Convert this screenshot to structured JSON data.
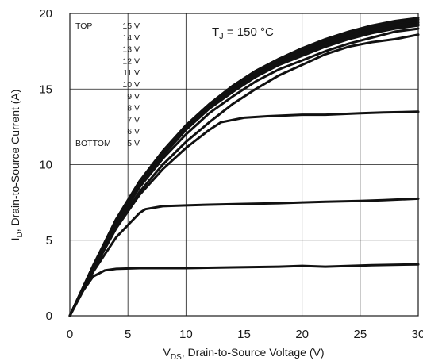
{
  "chart_data": {
    "type": "line",
    "xlabel_main": "V",
    "xlabel_sub": "DS",
    "xlabel_rest": ", Drain-to-Source Voltage (V)",
    "ylabel_main": "I",
    "ylabel_sub": "D",
    "ylabel_rest": ", Drain-to-Source Current (A)",
    "xlim": [
      0,
      30
    ],
    "ylim": [
      0,
      20
    ],
    "xticks": [
      0,
      5,
      10,
      15,
      20,
      25,
      30
    ],
    "yticks": [
      0,
      5,
      10,
      15,
      20
    ],
    "grid": true,
    "annotation": {
      "main": "T",
      "sub": "J",
      "rest": " = 150 °C"
    },
    "legend": {
      "top_label": "TOP",
      "bottom_label": "BOTTOM",
      "entries": [
        "15 V",
        "14 V",
        "13 V",
        "12 V",
        "11 V",
        "10 V",
        "9 V",
        "8 V",
        "7 V",
        "6 V",
        "5 V"
      ]
    },
    "series": [
      {
        "x": [
          0,
          2,
          4,
          6,
          8,
          10,
          12,
          14,
          16,
          18,
          20,
          22,
          24,
          26,
          28,
          30
        ],
        "values": [
          0,
          3.3,
          6.4,
          8.9,
          10.9,
          12.6,
          14.0,
          15.2,
          16.2,
          17.0,
          17.7,
          18.3,
          18.8,
          19.2,
          19.5,
          19.7
        ]
      },
      {
        "x": [
          0,
          2,
          4,
          6,
          8,
          10,
          12,
          14,
          16,
          18,
          20,
          22,
          24,
          26,
          28,
          30
        ],
        "values": [
          0,
          3.3,
          6.4,
          8.9,
          10.9,
          12.6,
          14.0,
          15.2,
          16.2,
          17.0,
          17.6,
          18.2,
          18.7,
          19.1,
          19.4,
          19.6
        ]
      },
      {
        "x": [
          0,
          2,
          4,
          6,
          8,
          10,
          12,
          14,
          16,
          18,
          20,
          22,
          24,
          26,
          28,
          30
        ],
        "values": [
          0,
          3.3,
          6.3,
          8.8,
          10.8,
          12.5,
          13.9,
          15.1,
          16.1,
          16.9,
          17.5,
          18.1,
          18.6,
          19.0,
          19.3,
          19.5
        ]
      },
      {
        "x": [
          0,
          2,
          4,
          6,
          8,
          10,
          12,
          14,
          16,
          18,
          20,
          22,
          24,
          26,
          28,
          30
        ],
        "values": [
          0,
          3.3,
          6.3,
          8.8,
          10.8,
          12.5,
          13.9,
          15.0,
          16.0,
          16.8,
          17.4,
          18.0,
          18.5,
          18.9,
          19.2,
          19.4
        ]
      },
      {
        "x": [
          0,
          2,
          4,
          6,
          8,
          10,
          12,
          14,
          16,
          18,
          20,
          22,
          24,
          26,
          28,
          30
        ],
        "values": [
          0,
          3.2,
          6.2,
          8.7,
          10.7,
          12.4,
          13.8,
          14.9,
          15.9,
          16.7,
          17.3,
          17.9,
          18.4,
          18.8,
          19.1,
          19.3
        ]
      },
      {
        "x": [
          0,
          2,
          4,
          6,
          8,
          10,
          12,
          14,
          16,
          18,
          20,
          22,
          24,
          26,
          28,
          30
        ],
        "values": [
          0,
          3.2,
          6.2,
          8.7,
          10.6,
          12.3,
          13.7,
          14.8,
          15.8,
          16.6,
          17.2,
          17.8,
          18.3,
          18.7,
          19.0,
          19.2
        ]
      },
      {
        "x": [
          0,
          2,
          4,
          6,
          8,
          10,
          12,
          14,
          16,
          18,
          20,
          22,
          24,
          26,
          28,
          30
        ],
        "values": [
          0,
          3.2,
          6.1,
          8.5,
          10.4,
          12.0,
          13.4,
          14.5,
          15.5,
          16.3,
          16.9,
          17.5,
          18.0,
          18.4,
          18.8,
          19.0
        ]
      },
      {
        "x": [
          0,
          2,
          4,
          6,
          8,
          10,
          12,
          14,
          16,
          18,
          20,
          22,
          24,
          26,
          28,
          30
        ],
        "values": [
          0,
          3.1,
          5.9,
          8.2,
          10.0,
          11.5,
          12.8,
          14.0,
          15.0,
          15.9,
          16.6,
          17.3,
          17.8,
          18.1,
          18.3,
          18.6
        ]
      },
      {
        "x": [
          0,
          2,
          4,
          6,
          8,
          10,
          12,
          13,
          15,
          17,
          20,
          22,
          25,
          27,
          30
        ],
        "values": [
          0,
          3.0,
          5.8,
          8.0,
          9.7,
          11.1,
          12.3,
          12.8,
          13.1,
          13.2,
          13.3,
          13.3,
          13.4,
          13.45,
          13.5
        ]
      },
      {
        "x": [
          0,
          2,
          4,
          6,
          6.5,
          8,
          10,
          12,
          15,
          18,
          20,
          22,
          25,
          27,
          30
        ],
        "values": [
          0,
          2.9,
          5.2,
          6.8,
          7.05,
          7.25,
          7.3,
          7.35,
          7.4,
          7.45,
          7.5,
          7.55,
          7.6,
          7.65,
          7.75
        ]
      },
      {
        "x": [
          0,
          1,
          2,
          3,
          4,
          6,
          10,
          14,
          18,
          20,
          22,
          26,
          30
        ],
        "values": [
          0,
          1.5,
          2.6,
          3.0,
          3.1,
          3.15,
          3.15,
          3.2,
          3.25,
          3.3,
          3.25,
          3.35,
          3.4
        ]
      }
    ]
  }
}
